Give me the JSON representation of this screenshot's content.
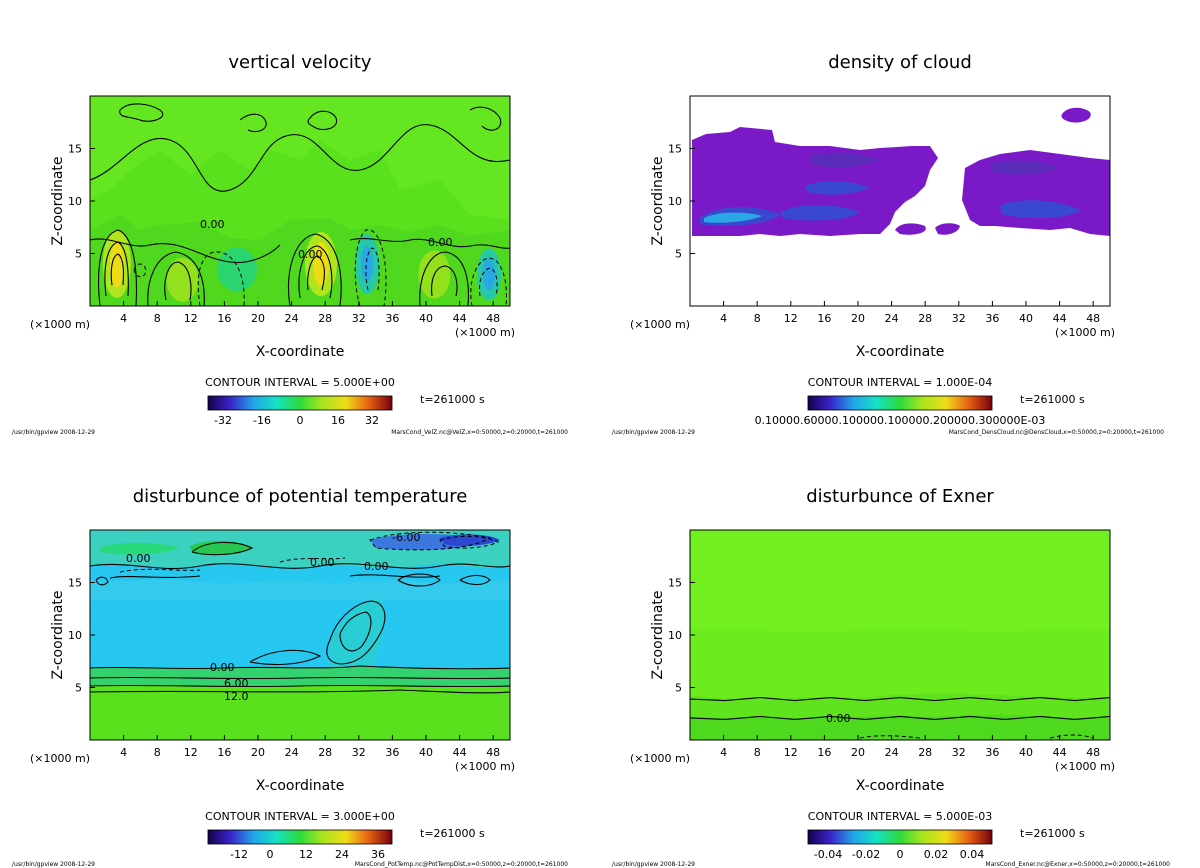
{
  "chart_data": [
    {
      "type": "heatmap",
      "title": "vertical velocity",
      "xlabel": "X-coordinate",
      "ylabel": "Z-coordinate",
      "x_unit_left": "(×1000 m)",
      "x_unit_right": "(×1000 m)",
      "xlim": [
        0,
        50
      ],
      "ylim": [
        0,
        20
      ],
      "xticks": [
        4,
        8,
        12,
        16,
        20,
        24,
        28,
        32,
        36,
        40,
        44,
        48
      ],
      "yticks": [
        5,
        10,
        15
      ],
      "contour_interval": "CONTOUR INTERVAL = 5.000E+00",
      "time": "t=261000 s",
      "colorbar_ticks": [
        "-32",
        "-16",
        "0",
        "16",
        "32"
      ],
      "colorbar_range": [
        -40,
        40
      ],
      "footer_left": "/usr/bin/gpview  2008-12-29",
      "footer_right": "MarsCond_VelZ.nc@VelZ,x=0:50000,z=0:20000,t=261000",
      "contour_labels": [
        "0.00",
        "0.00",
        "0.00"
      ],
      "features": [
        {
          "kind": "updraft",
          "x": 3.2,
          "z": 4,
          "value": 30
        },
        {
          "kind": "updraft",
          "x": 27.5,
          "z": 4,
          "value": 30
        },
        {
          "kind": "updraft",
          "x": 11,
          "z": 2.5,
          "value": 12
        },
        {
          "kind": "updraft",
          "x": 41,
          "z": 3,
          "value": 14
        },
        {
          "kind": "downdraft",
          "x": 17.5,
          "z": 3.5,
          "value": -10
        },
        {
          "kind": "downdraft",
          "x": 33,
          "z": 4,
          "value": -18
        },
        {
          "kind": "downdraft",
          "x": 47.5,
          "z": 3,
          "value": -20
        }
      ]
    },
    {
      "type": "heatmap",
      "title": "density of cloud",
      "xlabel": "X-coordinate",
      "ylabel": "Z-coordinate",
      "x_unit_left": "(×1000 m)",
      "x_unit_right": "(×1000 m)",
      "xlim": [
        0,
        50
      ],
      "ylim": [
        0,
        20
      ],
      "xticks": [
        4,
        8,
        12,
        16,
        20,
        24,
        28,
        32,
        36,
        40,
        44,
        48
      ],
      "yticks": [
        5,
        10,
        15
      ],
      "contour_interval": "CONTOUR INTERVAL = 1.000E-04",
      "time": "t=261000 s",
      "colorbar_ticks": [
        "0.10000.60000.100000.100000.200000.300000E-03"
      ],
      "footer_left": "/usr/bin/gpview  2008-12-29",
      "footer_right": "MarsCond_DensCloud.nc@DensCloud,x=0:50000,z=0:20000,t=261000",
      "cloud_layer": {
        "z_bottom": 7,
        "z_top": 16.5,
        "x_range": [
          0,
          50
        ]
      }
    },
    {
      "type": "heatmap",
      "title": "disturbunce of potential temperature",
      "xlabel": "X-coordinate",
      "ylabel": "Z-coordinate",
      "x_unit_left": "(×1000 m)",
      "x_unit_right": "(×1000 m)",
      "xlim": [
        0,
        50
      ],
      "ylim": [
        0,
        20
      ],
      "xticks": [
        4,
        8,
        12,
        16,
        20,
        24,
        28,
        32,
        36,
        40,
        44,
        48
      ],
      "yticks": [
        5,
        10,
        15
      ],
      "contour_interval": "CONTOUR INTERVAL = 3.000E+00",
      "time": "t=261000 s",
      "colorbar_ticks": [
        "-12",
        "0",
        "12",
        "24",
        "36"
      ],
      "colorbar_range": [
        -18,
        42
      ],
      "footer_left": "/usr/bin/gpview  2008-12-29",
      "footer_right": "MarsCond_PotTemp.nc@PotTempDist,x=0:50000,z=0:20000,t=261000",
      "contour_labels": [
        "-6.00",
        "0.00",
        "0.00",
        "0.00",
        "0.00",
        "6.00",
        "12.0"
      ],
      "layers": [
        {
          "z_from": 0,
          "z_to": 4.6,
          "value": 15
        },
        {
          "z_from": 4.6,
          "z_to": 6.8,
          "value": 7
        },
        {
          "z_from": 6.8,
          "z_to": 17.5,
          "value": -4
        },
        {
          "z_from": 17.5,
          "z_to": 20,
          "value": -1
        }
      ]
    },
    {
      "type": "heatmap",
      "title": "disturbunce of Exner",
      "xlabel": "X-coordinate",
      "ylabel": "Z-coordinate",
      "x_unit_left": "(×1000 m)",
      "x_unit_right": "(×1000 m)",
      "xlim": [
        0,
        50
      ],
      "ylim": [
        0,
        20
      ],
      "xticks": [
        4,
        8,
        12,
        16,
        20,
        24,
        28,
        32,
        36,
        40,
        44,
        48
      ],
      "yticks": [
        5,
        10,
        15
      ],
      "contour_interval": "CONTOUR INTERVAL = 5.000E-03",
      "time": "t=261000 s",
      "colorbar_ticks": [
        "-0.04",
        "-0.02",
        "0",
        "0.02",
        "0.04"
      ],
      "colorbar_range": [
        -0.05,
        0.05
      ],
      "footer_left": "/usr/bin/gpview  2008-12-29",
      "footer_right": "MarsCond_Exner.nc@Exner,x=0:50000,z=0:20000,t=261000",
      "contour_labels": [
        "0.00"
      ],
      "contour_levels_z": [
        2.1,
        3.9
      ]
    }
  ],
  "colors": {
    "field_green": "#59e11e",
    "field_green_light": "#72ef1e",
    "cloud_purple": "#7a19c8",
    "pt_cyan": "#26c8f0"
  }
}
